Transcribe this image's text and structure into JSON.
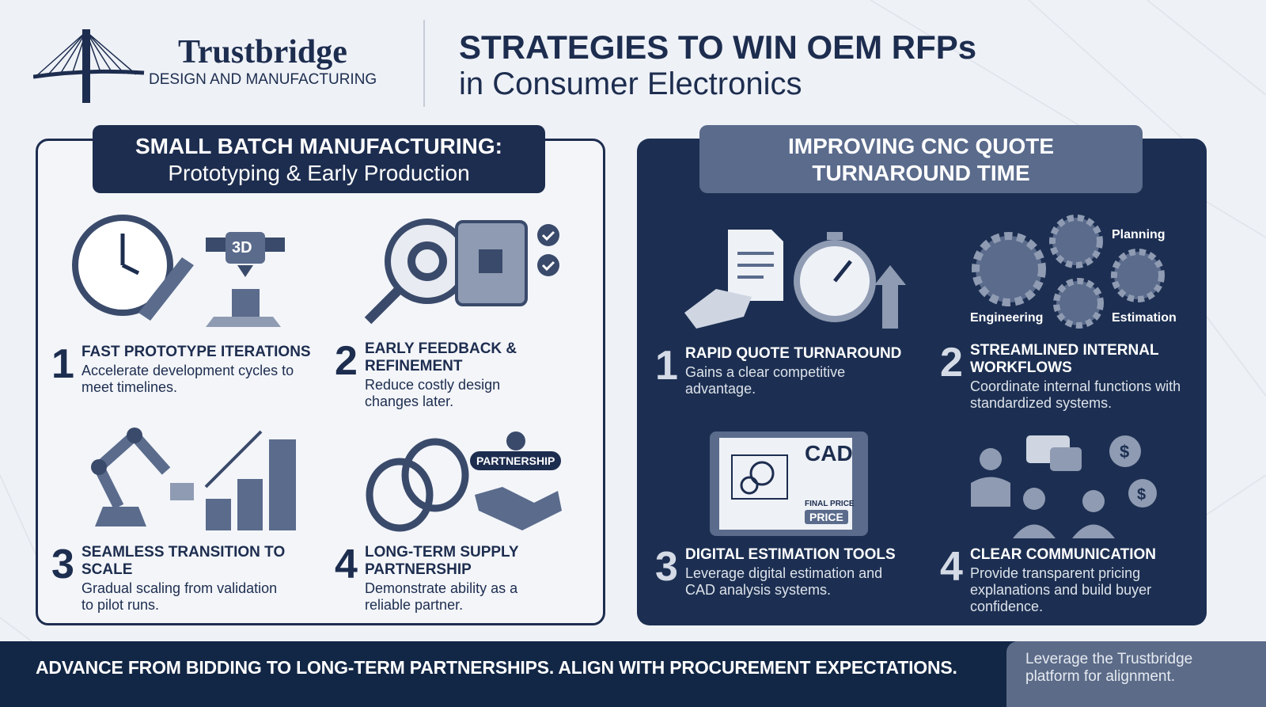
{
  "header": {
    "brand": "Trustbridge",
    "brand_sub": "DESIGN AND MANUFACTURING",
    "title_line1": "STRATEGIES TO WIN OEM RFPs",
    "title_line2": "in Consumer Electronics"
  },
  "left_panel": {
    "heading_line1": "SMALL BATCH MANUFACTURING:",
    "heading_line2": "Prototyping & Early Production",
    "items": [
      {
        "num": "1",
        "title": "FAST PROTOTYPE ITERATIONS",
        "desc": "Accelerate development cycles to meet timelines.",
        "icon": "clock-rocket-3d-printer-icon"
      },
      {
        "num": "2",
        "title": "EARLY FEEDBACK & REFINEMENT",
        "desc": "Reduce costly design changes later.",
        "icon": "magnifier-circuit-checklist-icon"
      },
      {
        "num": "3",
        "title": "SEAMLESS TRANSITION TO SCALE",
        "desc": "Gradual scaling from validation to pilot runs.",
        "icon": "robot-arm-stacks-icon"
      },
      {
        "num": "4",
        "title": "LONG-TERM SUPPLY PARTNERSHIP",
        "desc": "Demonstrate ability as a reliable partner.",
        "icon": "chain-handshake-icon"
      }
    ],
    "badge": "PARTNERSHIP",
    "printer_label": "3D"
  },
  "right_panel": {
    "heading_line1": "IMPROVING CNC QUOTE",
    "heading_line2": "TURNAROUND TIME",
    "items": [
      {
        "num": "1",
        "title": "RAPID QUOTE TURNAROUND",
        "desc": "Gains a clear competitive advantage.",
        "icon": "document-stopwatch-icon"
      },
      {
        "num": "2",
        "title": "STREAMLINED INTERNAL WORKFLOWS",
        "desc": "Coordinate internal functions with standardized systems.",
        "icon": "gears-icon"
      },
      {
        "num": "3",
        "title": "DIGITAL ESTIMATION TOOLS",
        "desc": "Leverage digital estimation and CAD analysis systems.",
        "icon": "tablet-cad-icon"
      },
      {
        "num": "4",
        "title": "CLEAR COMMUNICATION",
        "desc": "Provide transparent pricing explanations and build buyer confidence.",
        "icon": "people-chat-dollar-icon"
      }
    ],
    "gear_labels": {
      "planning": "Planning",
      "engineering": "Engineering",
      "estimation": "Estimation"
    },
    "cad": {
      "title": "CAD",
      "final_price": "FINAL PRICE",
      "price": "PRICE"
    }
  },
  "footer": {
    "message": "ADVANCE FROM BIDDING TO LONG-TERM PARTNERSHIPS. ALIGN WITH PROCUREMENT EXPECTATIONS.",
    "cta": "Leverage the Trustbridge platform for alignment."
  },
  "colors": {
    "navy": "#1d2d4f",
    "panel_dark": "#1c2f52",
    "slate": "#5a6b8c",
    "background": "#eef1f6"
  }
}
